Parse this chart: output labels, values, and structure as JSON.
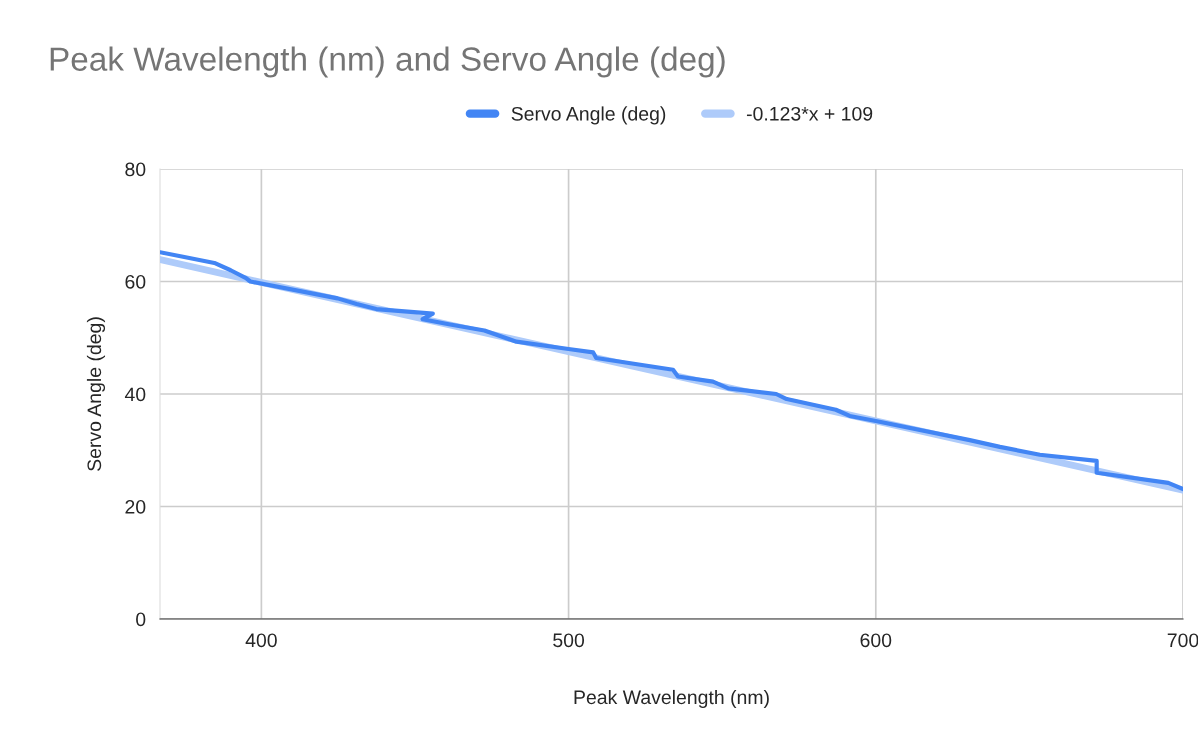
{
  "chart_data": {
    "type": "line",
    "title": "Peak Wavelength (nm) and Servo Angle (deg)",
    "xlabel": "Peak Wavelength (nm)",
    "ylabel": "Servo Angle (deg)",
    "series": [
      {
        "name": "Servo Angle (deg)",
        "color": "#4285f4",
        "x": [
          367,
          384.7,
          390,
          395,
          396.4,
          424.8,
          431,
          437.4,
          455.8,
          452.5,
          461,
          472.6,
          483,
          500,
          508,
          509,
          534,
          535.6,
          547,
          552,
          567.6,
          571,
          587,
          591.5,
          600,
          630.6,
          640.4,
          653.4,
          671.9,
          671.9,
          695.2,
          700
        ],
        "values": [
          65.2,
          63.3,
          62,
          60.6,
          60,
          57,
          56,
          55.1,
          54.3,
          53.3,
          52.4,
          51.3,
          49.3,
          48,
          47.4,
          46.4,
          44.3,
          43.1,
          42.2,
          41,
          40,
          39.1,
          37.2,
          36.1,
          35.2,
          31.8,
          30.6,
          29.2,
          28.1,
          26,
          24.2,
          23.1
        ]
      },
      {
        "name": "-0.123*x + 109",
        "color": "#aecbfa",
        "x": [
          367,
          700
        ],
        "values": [
          63.9,
          22.9
        ]
      }
    ],
    "xlim": [
      367,
      700
    ],
    "xticks": [
      400,
      500,
      600,
      700
    ],
    "ylim": [
      0,
      80
    ],
    "yticks": [
      0,
      20,
      40,
      60,
      80
    ],
    "grid": true,
    "legend": "top"
  }
}
